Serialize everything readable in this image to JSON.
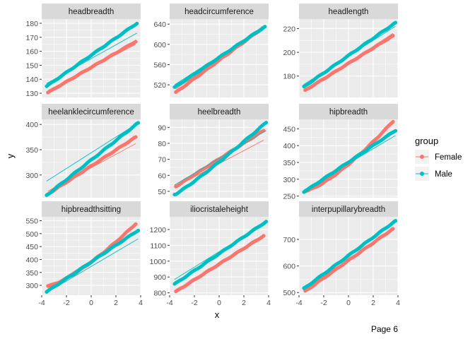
{
  "footer": {
    "page_label": "Page 6"
  },
  "colors": {
    "Female": "#F8766D",
    "Male": "#00BFC4",
    "panel_bg": "#EBEBEB",
    "strip_bg": "#D9D9D9",
    "grid": "#FFFFFF"
  },
  "chart_data": {
    "type": "scatter",
    "xlabel": "x",
    "ylabel": "y",
    "legend": {
      "title": "group",
      "position": "right",
      "entries": [
        "Female",
        "Male"
      ]
    },
    "grid": true,
    "x_ticks": [
      -4,
      -2,
      0,
      2,
      4
    ],
    "xlim": [
      -4,
      4
    ],
    "panels": [
      {
        "title": "headbreadth",
        "yticks": [
          130,
          140,
          150,
          160,
          170,
          180
        ],
        "ylim": [
          127,
          183
        ],
        "series": [
          {
            "name": "Female",
            "x_range": [
              -3.5,
              3.6
            ],
            "y_range": [
              130.5,
              167
            ],
            "line": [
              132,
              165
            ]
          },
          {
            "name": "Male",
            "x_range": [
              -3.6,
              3.7
            ],
            "y_range": [
              135,
              180
            ],
            "line": [
              137,
              173
            ]
          }
        ]
      },
      {
        "title": "headcircumference",
        "yticks": [
          520,
          560,
          600,
          640
        ],
        "ylim": [
          495,
          650
        ],
        "series": [
          {
            "name": "Female",
            "x_range": [
              -3.5,
              3.5
            ],
            "y_range": [
              505,
              632
            ],
            "line": [
              512,
              628
            ]
          },
          {
            "name": "Male",
            "x_range": [
              -3.6,
              3.7
            ],
            "y_range": [
              515,
              635
            ],
            "line": [
              520,
              635
            ]
          }
        ]
      },
      {
        "title": "headlength",
        "yticks": [
          180,
          200,
          220
        ],
        "ylim": [
          162,
          228
        ],
        "series": [
          {
            "name": "Female",
            "x_range": [
              -3.5,
              3.6
            ],
            "y_range": [
              168,
              214
            ],
            "line": [
              167,
              216
            ]
          },
          {
            "name": "Male",
            "x_range": [
              -3.6,
              3.8
            ],
            "y_range": [
              171,
              225
            ],
            "line": [
              173,
              222
            ]
          }
        ]
      },
      {
        "title": "heelanklecircumference",
        "yticks": [
          300,
          350,
          400
        ],
        "ylim": [
          255,
          410
        ],
        "series": [
          {
            "name": "Female",
            "x_range": [
              -3.5,
              3.6
            ],
            "y_range": [
              262,
              375
            ],
            "line": [
              268,
              362
            ]
          },
          {
            "name": "Male",
            "x_range": [
              -3.6,
              3.8
            ],
            "y_range": [
              260,
              403
            ],
            "line": [
              288,
              403
            ]
          }
        ]
      },
      {
        "title": "heelbreadth",
        "yticks": [
          50,
          60,
          70,
          80,
          90
        ],
        "ylim": [
          46,
          95
        ],
        "series": [
          {
            "name": "Female",
            "x_range": [
              -3.5,
              3.6
            ],
            "y_range": [
              53,
              88
            ],
            "line": [
              53,
              82
            ]
          },
          {
            "name": "Male",
            "x_range": [
              -3.6,
              3.8
            ],
            "y_range": [
              48,
              93
            ],
            "line": [
              54,
              88
            ]
          }
        ]
      },
      {
        "title": "hipbreadth",
        "yticks": [
          250,
          300,
          350,
          400,
          450
        ],
        "ylim": [
          245,
          478
        ],
        "series": [
          {
            "name": "Female",
            "x_range": [
              -3.5,
              3.6
            ],
            "y_range": [
              265,
              472
            ],
            "line": [
              268,
              435
            ]
          },
          {
            "name": "Male",
            "x_range": [
              -3.6,
              3.8
            ],
            "y_range": [
              262,
              445
            ],
            "line": [
              268,
              430
            ]
          }
        ]
      },
      {
        "title": "hipbreadthsitting",
        "yticks": [
          300,
          350,
          400,
          450,
          500,
          550
        ],
        "ylim": [
          262,
          565
        ],
        "series": [
          {
            "name": "Female",
            "x_range": [
              -3.5,
              3.6
            ],
            "y_range": [
              298,
              538
            ],
            "line": [
              290,
              505
            ]
          },
          {
            "name": "Male",
            "x_range": [
              -3.6,
              3.8
            ],
            "y_range": [
              275,
              513
            ],
            "line": [
              272,
              480
            ]
          }
        ]
      },
      {
        "title": "iliocristaleheight",
        "yticks": [
          800,
          900,
          1000,
          1100,
          1200
        ],
        "ylim": [
          785,
          1280
        ],
        "series": [
          {
            "name": "Female",
            "x_range": [
              -3.5,
              3.6
            ],
            "y_range": [
              808,
              1160
            ],
            "line": [
              812,
              1150
            ]
          },
          {
            "name": "Male",
            "x_range": [
              -3.6,
              3.8
            ],
            "y_range": [
              855,
              1250
            ],
            "line": [
              885,
              1245
            ]
          }
        ]
      },
      {
        "title": "interpupillarybreadth",
        "yticks": [
          500,
          600,
          700
        ],
        "ylim": [
          490,
          785
        ],
        "series": [
          {
            "name": "Female",
            "x_range": [
              -3.5,
              3.6
            ],
            "y_range": [
              505,
              740
            ],
            "line": [
              510,
              740
            ]
          },
          {
            "name": "Male",
            "x_range": [
              -3.6,
              3.8
            ],
            "y_range": [
              515,
              770
            ],
            "line": [
              520,
              765
            ]
          }
        ]
      }
    ]
  }
}
